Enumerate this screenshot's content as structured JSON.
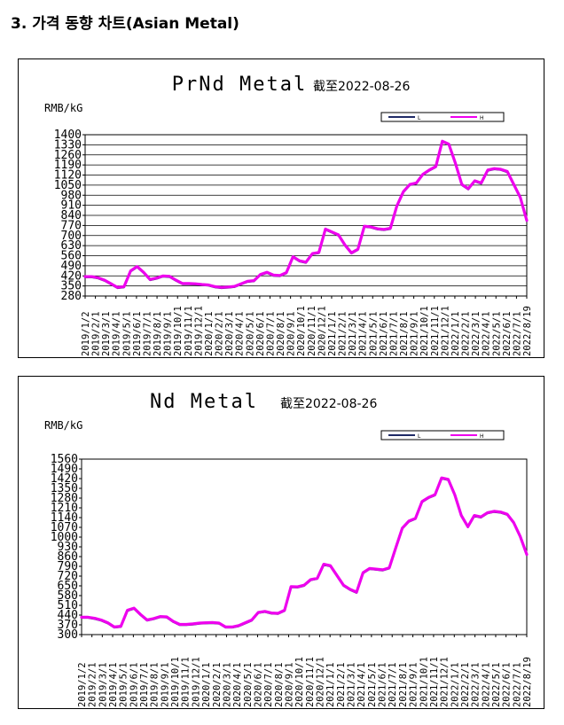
{
  "page": {
    "section_heading": "3. 가격 동향 차트(Asian Metal)"
  },
  "colors": {
    "series_low": "#1f2a66",
    "series_high": "#ee00ee",
    "grid": "#000000",
    "frame": "#000000"
  },
  "chart_data": [
    {
      "type": "line",
      "title": "PrNd Metal",
      "subtitle": "截至2022-08-26",
      "ylabel": "RMB/kG",
      "ylim": [
        280,
        1400
      ],
      "yticks": [
        280,
        350,
        420,
        490,
        560,
        630,
        700,
        770,
        840,
        910,
        980,
        1050,
        1120,
        1190,
        1260,
        1330,
        1400
      ],
      "xtick_labels": [
        "2019/1/2",
        "2019/2/1",
        "2019/3/1",
        "2019/4/1",
        "2019/5/1",
        "2019/6/1",
        "2019/7/1",
        "2019/8/1",
        "2019/9/1",
        "2019/10/1",
        "2019/11/1",
        "2019/12/1",
        "2020/1/1",
        "2020/2/1",
        "2020/3/1",
        "2020/4/1",
        "2020/5/1",
        "2020/6/1",
        "2020/7/1",
        "2020/8/1",
        "2020/9/1",
        "2020/10/1",
        "2020/11/1",
        "2020/12/1",
        "2021/1/1",
        "2021/2/1",
        "2021/3/1",
        "2021/4/1",
        "2021/5/1",
        "2021/6/1",
        "2021/7/1",
        "2021/8/1",
        "2021/9/1",
        "2021/10/1",
        "2021/11/1",
        "2021/12/1",
        "2022/1/1",
        "2022/2/1",
        "2022/3/1",
        "2022/4/1",
        "2022/5/1",
        "2022/6/1",
        "2022/7/1",
        "2022/8/19"
      ],
      "legend": {
        "entries": [
          "L",
          "H"
        ],
        "placement": "top-right"
      },
      "grid": "horizontal",
      "series": [
        {
          "name": "L",
          "values": [
            410,
            410,
            402,
            385,
            360,
            335,
            340,
            450,
            480,
            440,
            390,
            400,
            415,
            412,
            385,
            362,
            362,
            360,
            355,
            352,
            340,
            335,
            338,
            342,
            360,
            378,
            382,
            425,
            440,
            420,
            418,
            438,
            548,
            520,
            510,
            570,
            578,
            740,
            720,
            700,
            630,
            575,
            600,
            760,
            755,
            742,
            738,
            745,
            900,
            1000,
            1050,
            1060,
            1120,
            1150,
            1175,
            1350,
            1330,
            1200,
            1050,
            1020,
            1075,
            1060,
            1150,
            1160,
            1155,
            1140,
            1050,
            960,
            800
          ]
        },
        {
          "name": "H",
          "values": [
            415,
            415,
            407,
            390,
            365,
            340,
            345,
            455,
            485,
            445,
            395,
            405,
            420,
            417,
            390,
            367,
            367,
            365,
            360,
            357,
            345,
            340,
            343,
            347,
            365,
            383,
            387,
            430,
            445,
            425,
            423,
            443,
            553,
            525,
            515,
            575,
            583,
            745,
            725,
            705,
            635,
            580,
            605,
            765,
            760,
            747,
            743,
            750,
            905,
            1005,
            1055,
            1065,
            1125,
            1155,
            1180,
            1355,
            1335,
            1205,
            1055,
            1025,
            1080,
            1065,
            1155,
            1165,
            1160,
            1145,
            1055,
            965,
            805
          ]
        }
      ]
    },
    {
      "type": "line",
      "title": "Nd Metal",
      "subtitle": "截至2022-08-26",
      "ylabel": "RMB/kG",
      "ylim": [
        300,
        1560
      ],
      "yticks": [
        300,
        370,
        440,
        510,
        580,
        650,
        720,
        790,
        860,
        930,
        1000,
        1070,
        1140,
        1210,
        1280,
        1350,
        1420,
        1490,
        1560
      ],
      "xtick_labels": [
        "2019/1/2",
        "2019/2/1",
        "2019/3/1",
        "2019/4/1",
        "2019/5/1",
        "2019/6/1",
        "2019/7/1",
        "2019/8/1",
        "2019/9/1",
        "2019/10/1",
        "2019/11/1",
        "2019/12/1",
        "2020/1/1",
        "2020/2/1",
        "2020/3/1",
        "2020/4/1",
        "2020/5/1",
        "2020/6/1",
        "2020/7/1",
        "2020/8/1",
        "2020/9/1",
        "2020/10/1",
        "2020/11/1",
        "2020/12/1",
        "2021/1/1",
        "2021/2/1",
        "2021/3/1",
        "2021/4/1",
        "2021/5/1",
        "2021/6/1",
        "2021/7/1",
        "2021/8/1",
        "2021/9/1",
        "2021/10/1",
        "2021/11/1",
        "2021/12/1",
        "2022/1/1",
        "2022/2/1",
        "2022/3/1",
        "2022/4/1",
        "2022/5/1",
        "2022/6/1",
        "2022/7/1",
        "2022/8/19"
      ],
      "legend": {
        "entries": [
          "L",
          "H"
        ],
        "placement": "top-right"
      },
      "grid": "none",
      "series": [
        {
          "name": "L",
          "values": [
            420,
            420,
            412,
            400,
            380,
            350,
            355,
            470,
            485,
            440,
            400,
            410,
            425,
            422,
            390,
            368,
            368,
            372,
            378,
            380,
            382,
            378,
            350,
            350,
            360,
            380,
            400,
            455,
            462,
            450,
            448,
            470,
            640,
            638,
            650,
            690,
            700,
            800,
            790,
            720,
            650,
            620,
            600,
            740,
            770,
            765,
            760,
            775,
            920,
            1060,
            1110,
            1130,
            1250,
            1280,
            1300,
            1420,
            1410,
            1300,
            1150,
            1070,
            1150,
            1140,
            1170,
            1180,
            1175,
            1160,
            1100,
            1000,
            870
          ]
        },
        {
          "name": "H",
          "values": [
            425,
            425,
            417,
            405,
            385,
            355,
            360,
            475,
            490,
            445,
            405,
            415,
            430,
            427,
            395,
            373,
            373,
            377,
            383,
            385,
            387,
            383,
            355,
            355,
            365,
            385,
            405,
            460,
            467,
            455,
            453,
            475,
            645,
            643,
            655,
            695,
            705,
            805,
            795,
            725,
            655,
            625,
            605,
            745,
            775,
            770,
            765,
            780,
            925,
            1065,
            1115,
            1135,
            1255,
            1285,
            1305,
            1425,
            1415,
            1305,
            1155,
            1075,
            1155,
            1145,
            1175,
            1185,
            1180,
            1165,
            1105,
            1005,
            875
          ]
        }
      ]
    }
  ]
}
